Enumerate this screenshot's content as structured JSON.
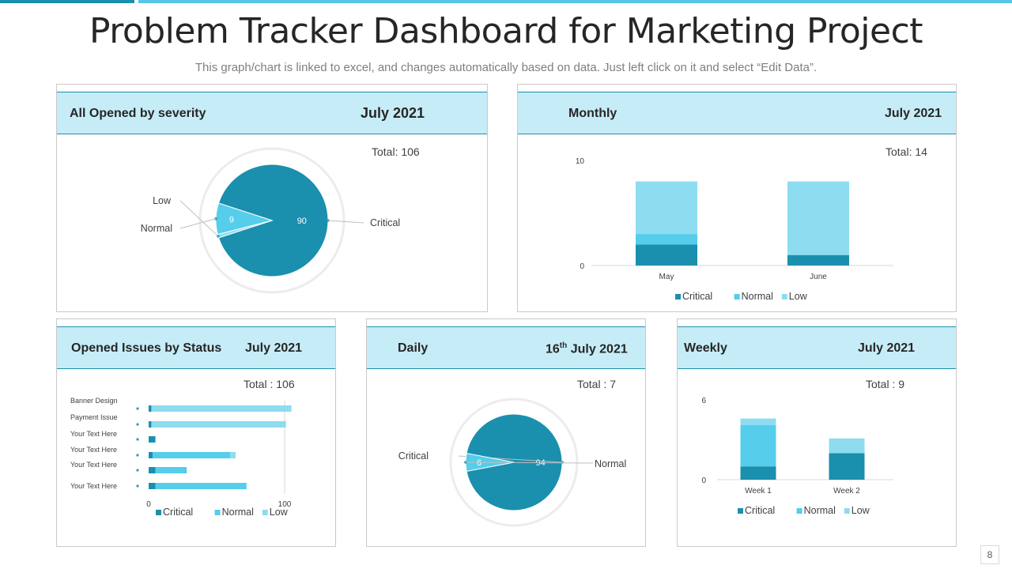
{
  "page": {
    "title": "Problem Tracker Dashboard for Marketing Project",
    "subtitle": "This graph/chart is linked to excel, and changes automatically  based on data. Just left click on it and select “Edit Data”.",
    "page_number": "8"
  },
  "colors": {
    "critical": "#1b8fae",
    "normal": "#55cdeb",
    "low": "#8edcf0",
    "header_bg": "#c6ecf7",
    "accent": "#1b90ab"
  },
  "panels": {
    "severity": {
      "title": "All Opened by severity",
      "date": "July 2021",
      "total": "Total: 106"
    },
    "monthly": {
      "title": "Monthly",
      "date": "July 2021",
      "total": "Total: 14"
    },
    "status": {
      "title": "Opened Issues by Status",
      "date": "July 2021",
      "total": "Total : 106"
    },
    "daily": {
      "title": "Daily",
      "date_day": "16",
      "date_sup": "th",
      "date_rest": " July 2021",
      "total": "Total : 7"
    },
    "weekly": {
      "title": "Weekly",
      "date": "July 2021",
      "total": "Total : 9"
    }
  },
  "chart_data": [
    {
      "id": "severity",
      "type": "pie",
      "slices": [
        {
          "label": "Critical",
          "value": 90,
          "data_label": "90",
          "color": "#1b8fae"
        },
        {
          "label": "Normal",
          "value": 9,
          "data_label": "9",
          "color": "#55cdeb"
        },
        {
          "label": "Low",
          "value": 1,
          "data_label": "",
          "color": "#8edcf0"
        }
      ]
    },
    {
      "id": "monthly",
      "type": "bar",
      "stacked": true,
      "categories": [
        "May",
        "June"
      ],
      "series": [
        {
          "name": "Critical",
          "values": [
            2,
            1
          ],
          "color": "#1b8fae"
        },
        {
          "name": "Normal",
          "values": [
            1,
            0
          ],
          "color": "#55cdeb"
        },
        {
          "name": "Low",
          "values": [
            5,
            7
          ],
          "color": "#8edcf0"
        }
      ],
      "ylim": [
        0,
        10
      ],
      "yticks": [
        "0",
        "10"
      ],
      "legend": "bottom"
    },
    {
      "id": "status",
      "type": "bar",
      "orientation": "horizontal",
      "stacked": true,
      "categories": [
        "Banner  Design",
        "Payment Issue",
        "Your Text Here",
        "Your Text Here",
        "Your Text Here",
        "Your Text Here"
      ],
      "series": [
        {
          "name": "Critical",
          "values": [
            2,
            2,
            5,
            3,
            5,
            5
          ],
          "color": "#1b8fae"
        },
        {
          "name": "Normal",
          "values": [
            0,
            0,
            0,
            57,
            23,
            67
          ],
          "color": "#55cdeb"
        },
        {
          "name": "Low",
          "values": [
            103,
            99,
            0,
            4,
            0,
            0
          ],
          "color": "#8edcf0"
        }
      ],
      "xlim": [
        0,
        100
      ],
      "xticks": [
        "0",
        "100"
      ],
      "legend": "bottom"
    },
    {
      "id": "daily",
      "type": "pie",
      "slices": [
        {
          "label": "Critical",
          "value": 94,
          "data_label": "94",
          "color": "#1b8fae"
        },
        {
          "label": "Normal",
          "value": 6,
          "data_label": "6",
          "color": "#55cdeb"
        }
      ]
    },
    {
      "id": "weekly",
      "type": "bar",
      "stacked": true,
      "categories": [
        "Week 1",
        "Week 2"
      ],
      "series": [
        {
          "name": "Critical",
          "values": [
            1,
            2
          ],
          "color": "#1b8fae"
        },
        {
          "name": "Normal",
          "values": [
            3.1,
            0
          ],
          "color": "#55cdeb"
        },
        {
          "name": "Low",
          "values": [
            0.5,
            1.1
          ],
          "color": "#8edcf0"
        }
      ],
      "ylim": [
        0,
        6
      ],
      "yticks": [
        "0",
        "6"
      ],
      "legend": "bottom"
    }
  ]
}
